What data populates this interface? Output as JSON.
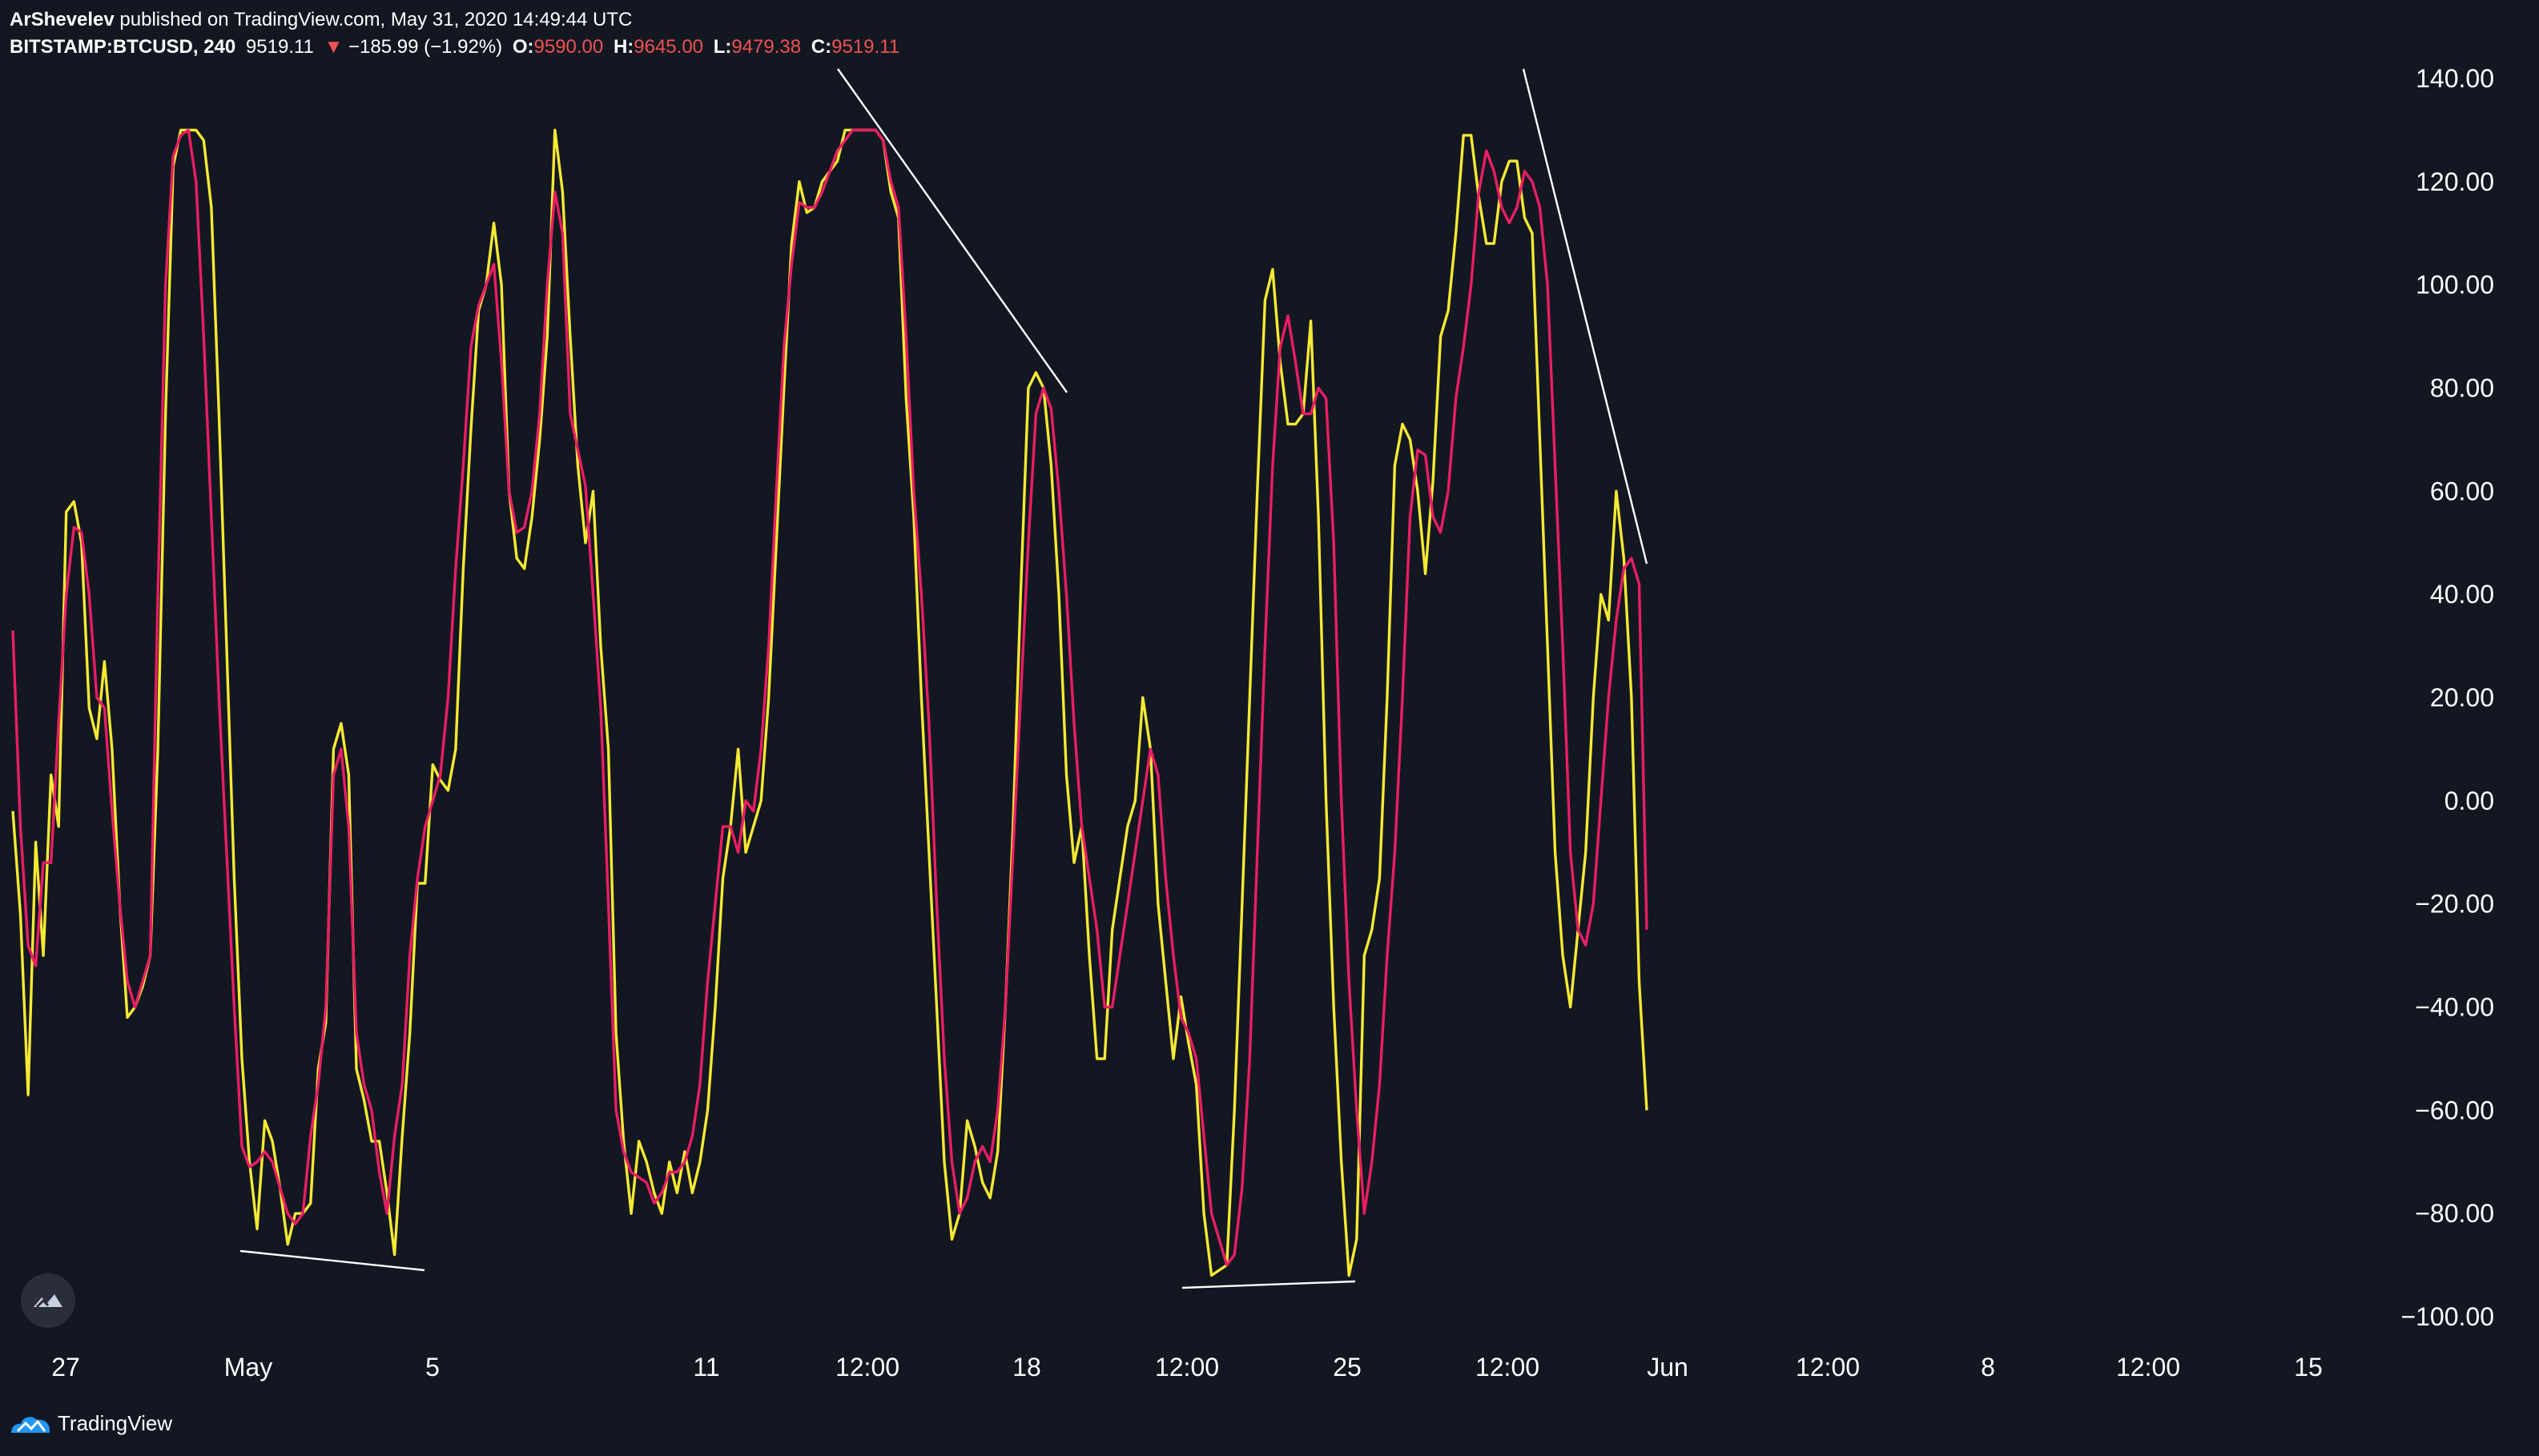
{
  "header": {
    "author": "ArShevelev",
    "published_text": "published on TradingView.com, May 31, 2020 14:49:44 UTC",
    "symbol": "BITSTAMP:BTCUSD, 240",
    "last_price": "9519.11",
    "change_arrow": "▼",
    "change": "−185.99 (−1.92%)",
    "o_label": "O:",
    "o_value": "9590.00",
    "h_label": "H:",
    "h_value": "9645.00",
    "l_label": "L:",
    "l_value": "9479.38",
    "c_label": "C:",
    "c_value": "9519.11"
  },
  "footer": {
    "brand": "TradingView"
  },
  "colors": {
    "background": "#131722",
    "k_line": "#f5e934",
    "d_line": "#e91e63",
    "trend_line": "#ffffff",
    "price_down": "#ef5350"
  },
  "chart_data": {
    "type": "line",
    "ylim": [
      -100,
      140
    ],
    "y_ticks": [
      "140.00",
      "120.00",
      "100.00",
      "80.00",
      "60.00",
      "40.00",
      "20.00",
      "0.00",
      "−20.00",
      "−40.00",
      "−60.00",
      "−80.00",
      "−100.00"
    ],
    "x_ticks": [
      "27",
      "May",
      "5",
      "11",
      "12:00",
      "18",
      "12:00",
      "25",
      "12:00",
      "Jun",
      "12:00",
      "8",
      "12:00",
      "15"
    ],
    "series": [
      {
        "key": "k",
        "values": [
          -2,
          -22,
          -57,
          -8,
          -30,
          5,
          -5,
          56,
          58,
          50,
          18,
          12,
          27,
          10,
          -20,
          -42,
          -40,
          -36,
          -30,
          10,
          75,
          123,
          130,
          130,
          130,
          128,
          115,
          75,
          30,
          -15,
          -50,
          -70,
          -83,
          -62,
          -66,
          -75,
          -86,
          -80,
          -80,
          -78,
          -52,
          -43,
          10,
          15,
          5,
          -52,
          -58,
          -66,
          -66,
          -76,
          -88,
          -65,
          -45,
          -16,
          -16,
          7,
          4,
          2,
          10,
          45,
          72,
          95,
          100,
          112,
          100,
          60,
          47,
          45,
          55,
          70,
          90,
          130,
          118,
          90,
          65,
          50,
          60,
          30,
          10,
          -45,
          -66,
          -80,
          -66,
          -70,
          -76,
          -80,
          -70,
          -76,
          -68,
          -76,
          -70,
          -60,
          -40,
          -15,
          -5,
          10,
          -10,
          -5,
          0,
          20,
          50,
          80,
          108,
          120,
          114,
          115,
          120,
          122,
          124,
          130,
          130,
          130,
          130,
          130,
          128,
          118,
          113,
          78,
          55,
          20,
          -10,
          -40,
          -70,
          -85,
          -80,
          -62,
          -67,
          -74,
          -77,
          -68,
          -40,
          -5,
          40,
          80,
          83,
          80,
          65,
          40,
          5,
          -12,
          -5,
          -30,
          -50,
          -50,
          -25,
          -15,
          -5,
          0,
          20,
          10,
          -20,
          -35,
          -50,
          -38,
          -47,
          -55,
          -80,
          -92,
          -91,
          -90,
          -60,
          -20,
          20,
          60,
          97,
          103,
          85,
          73,
          73,
          75,
          93,
          55,
          0,
          -40,
          -70,
          -92,
          -85,
          -30,
          -25,
          -15,
          20,
          65,
          73,
          70,
          60,
          44,
          62,
          90,
          95,
          110,
          129,
          129,
          117,
          108,
          108,
          120,
          124,
          124,
          113,
          110,
          70,
          30,
          -10,
          -30,
          -40,
          -25,
          -10,
          20,
          40,
          35,
          60,
          47,
          20,
          -35,
          -60
        ]
      },
      {
        "key": "d",
        "values": [
          33,
          -5,
          -28,
          -32,
          -12,
          -12,
          15,
          40,
          53,
          52,
          40,
          20,
          18,
          -2,
          -20,
          -35,
          -40,
          -35,
          -30,
          40,
          100,
          125,
          129,
          130,
          120,
          90,
          55,
          20,
          -10,
          -40,
          -67,
          -71,
          -70,
          -68,
          -70,
          -75,
          -80,
          -82,
          -80,
          -65,
          -55,
          -40,
          5,
          10,
          -5,
          -45,
          -55,
          -60,
          -72,
          -80,
          -65,
          -55,
          -30,
          -15,
          -5,
          0,
          5,
          20,
          45,
          65,
          88,
          96,
          100,
          104,
          85,
          60,
          52,
          53,
          60,
          75,
          100,
          118,
          110,
          75,
          68,
          61,
          40,
          18,
          -20,
          -60,
          -68,
          -72,
          -73,
          -74,
          -78,
          -76,
          -72,
          -72,
          -70,
          -65,
          -55,
          -35,
          -20,
          -5,
          -5,
          -10,
          0,
          -2,
          10,
          30,
          60,
          88,
          104,
          116,
          115,
          115,
          118,
          122,
          126,
          128,
          130,
          130,
          130,
          130,
          128,
          120,
          115,
          90,
          60,
          40,
          15,
          -20,
          -50,
          -70,
          -80,
          -77,
          -70,
          -67,
          -70,
          -60,
          -40,
          -10,
          20,
          50,
          75,
          80,
          76,
          60,
          40,
          15,
          -5,
          -15,
          -25,
          -40,
          -40,
          -30,
          -20,
          -10,
          0,
          10,
          5,
          -15,
          -30,
          -42,
          -45,
          -50,
          -65,
          -80,
          -85,
          -90,
          -88,
          -75,
          -50,
          -10,
          30,
          65,
          88,
          94,
          85,
          75,
          75,
          80,
          78,
          50,
          0,
          -35,
          -60,
          -80,
          -70,
          -55,
          -30,
          -10,
          20,
          55,
          68,
          67,
          55,
          52,
          60,
          78,
          88,
          100,
          118,
          126,
          122,
          115,
          112,
          115,
          122,
          120,
          115,
          100,
          65,
          30,
          -10,
          -25,
          -28,
          -20,
          0,
          20,
          35,
          45,
          47,
          42,
          -25
        ]
      }
    ],
    "trend_lines": 4
  }
}
